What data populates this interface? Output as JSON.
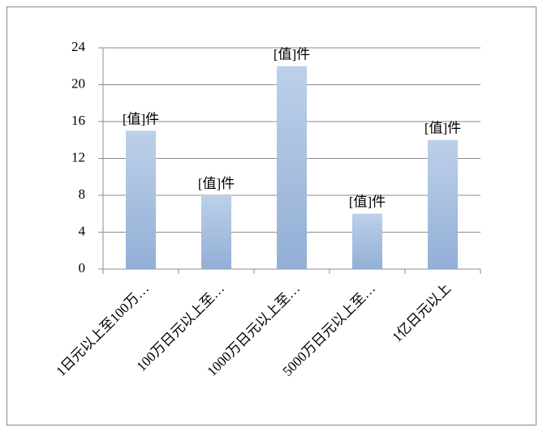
{
  "chart_data": {
    "type": "bar",
    "categories": [
      "1日元以上至100万…",
      "100万日元以上至…",
      "1000万日元以上至…",
      "5000万日元以上至…",
      "1亿日元以上"
    ],
    "values": [
      15,
      8,
      22,
      6,
      14
    ],
    "value_labels": [
      "[值]件",
      "[值]件",
      "[值]件",
      "[值]件",
      "[值]件"
    ],
    "color": "#a7bfdf",
    "ylim": [
      0,
      24
    ],
    "yticks": [
      0,
      4,
      8,
      12,
      16,
      20,
      24
    ],
    "grid": true
  }
}
